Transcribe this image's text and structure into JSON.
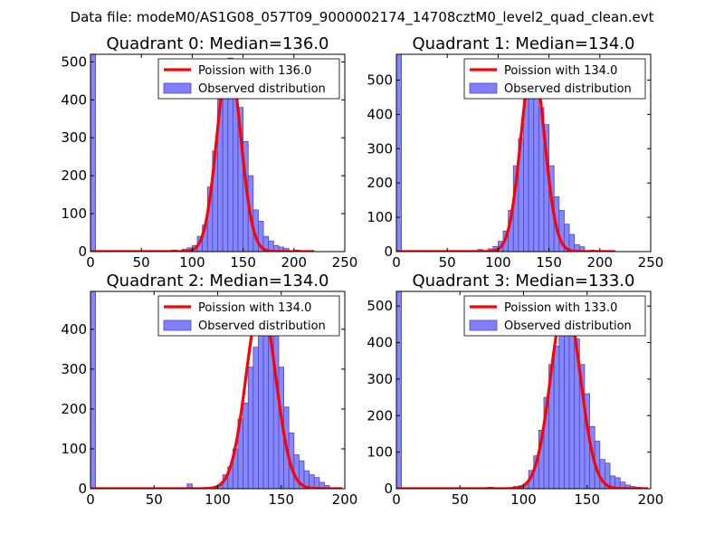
{
  "figure_title": "Data file: modeM0/AS1G08_057T09_9000002174_14708cztM0_level2_quad_clean.evt",
  "colors": {
    "hist_fill": "#8080ff",
    "hist_edge": "#4a4ab8",
    "fit_line": "#ff0000"
  },
  "chart_data": [
    {
      "type": "bar",
      "title": "Quadrant 0: Median=136.0",
      "xlim": [
        0,
        250
      ],
      "ylim": [
        0,
        520
      ],
      "xticks": [
        0,
        50,
        100,
        150,
        200,
        250
      ],
      "yticks": [
        0,
        100,
        200,
        300,
        400,
        500
      ],
      "bin_width": 5,
      "legend": [
        "Poission with 136.0",
        "Observed distribution"
      ],
      "hist": [
        [
          0,
          520
        ],
        [
          80,
          4
        ],
        [
          90,
          6
        ],
        [
          95,
          10
        ],
        [
          100,
          16
        ],
        [
          105,
          40
        ],
        [
          110,
          70
        ],
        [
          115,
          170
        ],
        [
          120,
          265
        ],
        [
          125,
          420
        ],
        [
          130,
          460
        ],
        [
          135,
          510
        ],
        [
          140,
          470
        ],
        [
          145,
          380
        ],
        [
          150,
          290
        ],
        [
          155,
          200
        ],
        [
          160,
          110
        ],
        [
          165,
          80
        ],
        [
          170,
          40
        ],
        [
          175,
          28
        ],
        [
          180,
          16
        ],
        [
          185,
          12
        ],
        [
          190,
          8
        ],
        [
          200,
          4
        ]
      ],
      "fit": {
        "mu": 136,
        "peak": 505,
        "x_range": [
          0,
          220
        ]
      }
    },
    {
      "type": "bar",
      "title": "Quadrant 1: Median=134.0",
      "xlim": [
        0,
        250
      ],
      "ylim": [
        0,
        575
      ],
      "xticks": [
        0,
        50,
        100,
        150,
        200,
        250
      ],
      "yticks": [
        0,
        100,
        200,
        300,
        400,
        500
      ],
      "bin_width": 5,
      "legend": [
        "Poission with 134.0",
        "Observed distribution"
      ],
      "hist": [
        [
          0,
          575
        ],
        [
          80,
          6
        ],
        [
          90,
          8
        ],
        [
          95,
          15
        ],
        [
          100,
          30
        ],
        [
          105,
          60
        ],
        [
          110,
          120
        ],
        [
          115,
          250
        ],
        [
          120,
          330
        ],
        [
          125,
          480
        ],
        [
          130,
          560
        ],
        [
          135,
          520
        ],
        [
          140,
          420
        ],
        [
          145,
          370
        ],
        [
          150,
          250
        ],
        [
          155,
          160
        ],
        [
          160,
          120
        ],
        [
          165,
          80
        ],
        [
          170,
          50
        ],
        [
          175,
          20
        ],
        [
          180,
          14
        ],
        [
          190,
          4
        ]
      ],
      "fit": {
        "mu": 134,
        "peak": 550,
        "x_range": [
          0,
          215
        ]
      }
    },
    {
      "type": "bar",
      "title": "Quadrant 2: Median=134.0",
      "xlim": [
        0,
        200
      ],
      "ylim": [
        0,
        495
      ],
      "xticks": [
        0,
        50,
        100,
        150,
        200
      ],
      "yticks": [
        0,
        100,
        200,
        300,
        400
      ],
      "bin_width": 4,
      "legend": [
        "Poission with 134.0",
        "Observed distribution"
      ],
      "hist": [
        [
          0,
          495
        ],
        [
          76,
          12
        ],
        [
          96,
          5
        ],
        [
          100,
          10
        ],
        [
          104,
          35
        ],
        [
          108,
          55
        ],
        [
          112,
          100
        ],
        [
          116,
          175
        ],
        [
          120,
          215
        ],
        [
          124,
          305
        ],
        [
          128,
          355
        ],
        [
          132,
          405
        ],
        [
          136,
          470
        ],
        [
          140,
          445
        ],
        [
          144,
          395
        ],
        [
          148,
          305
        ],
        [
          152,
          205
        ],
        [
          156,
          140
        ],
        [
          160,
          85
        ],
        [
          164,
          70
        ],
        [
          168,
          45
        ],
        [
          172,
          35
        ],
        [
          176,
          28
        ],
        [
          180,
          16
        ],
        [
          184,
          8
        ]
      ],
      "fit": {
        "mu": 134,
        "peak": 470,
        "x_range": [
          0,
          198
        ]
      }
    },
    {
      "type": "bar",
      "title": "Quadrant 3: Median=133.0",
      "xlim": [
        0,
        200
      ],
      "ylim": [
        0,
        540
      ],
      "xticks": [
        0,
        50,
        100,
        150,
        200
      ],
      "yticks": [
        0,
        100,
        200,
        300,
        400,
        500
      ],
      "bin_width": 4,
      "legend": [
        "Poission with 133.0",
        "Observed distribution"
      ],
      "hist": [
        [
          0,
          540
        ],
        [
          72,
          4
        ],
        [
          92,
          6
        ],
        [
          96,
          8
        ],
        [
          100,
          14
        ],
        [
          104,
          50
        ],
        [
          108,
          90
        ],
        [
          112,
          160
        ],
        [
          116,
          250
        ],
        [
          120,
          340
        ],
        [
          124,
          390
        ],
        [
          128,
          470
        ],
        [
          132,
          420
        ],
        [
          136,
          510
        ],
        [
          140,
          410
        ],
        [
          144,
          340
        ],
        [
          148,
          260
        ],
        [
          152,
          170
        ],
        [
          156,
          130
        ],
        [
          160,
          80
        ],
        [
          164,
          70
        ],
        [
          168,
          35
        ],
        [
          172,
          30
        ],
        [
          176,
          18
        ],
        [
          180,
          10
        ],
        [
          184,
          6
        ],
        [
          188,
          4
        ]
      ],
      "fit": {
        "mu": 133,
        "peak": 515,
        "x_range": [
          0,
          198
        ]
      }
    }
  ]
}
